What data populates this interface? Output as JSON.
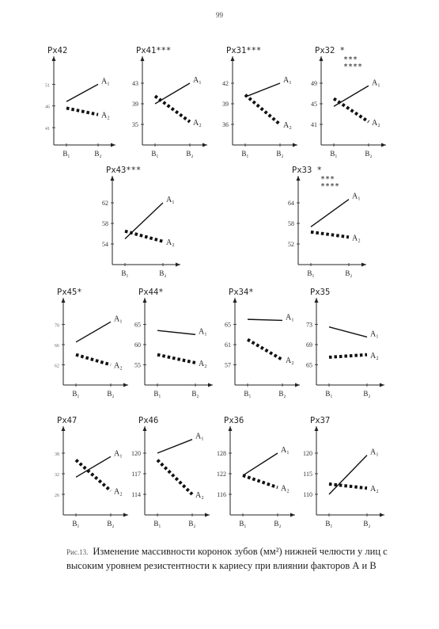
{
  "page_number": "99",
  "caption": {
    "number": "Рис.13.",
    "text": "Изменение массивности коронок зубов (мм²) нижней челюсти у лиц с высоким уровнем резистентности к кариесу при влиянии факторов А и В"
  },
  "chart_data": [
    {
      "type": "line",
      "title": "Px42",
      "stars": [],
      "xticks": [
        "B1",
        "B2"
      ],
      "yticks": [
        41,
        46,
        51
      ],
      "ylim": [
        37,
        56
      ],
      "small_ticks": true,
      "series": [
        {
          "name": "A1",
          "values": [
            47,
            51
          ]
        },
        {
          "name": "A2",
          "values": [
            45.5,
            44
          ]
        }
      ]
    },
    {
      "type": "line",
      "title": "Px41***",
      "stars": [],
      "xticks": [
        "B1",
        "B2"
      ],
      "yticks": [
        35,
        39,
        43
      ],
      "ylim": [
        31,
        47
      ],
      "small_ticks": false,
      "series": [
        {
          "name": "A1",
          "values": [
            39,
            43
          ]
        },
        {
          "name": "A2",
          "values": [
            40.5,
            35.5
          ]
        }
      ]
    },
    {
      "type": "line",
      "title": "Px31***",
      "stars": [],
      "xticks": [
        "B1",
        "B2"
      ],
      "yticks": [
        36,
        39,
        42
      ],
      "ylim": [
        33,
        45
      ],
      "small_ticks": false,
      "series": [
        {
          "name": "A1",
          "values": [
            40,
            42
          ]
        },
        {
          "name": "A2",
          "values": [
            40.3,
            36
          ]
        }
      ]
    },
    {
      "type": "line",
      "title": "Px32 *",
      "stars": [
        "***",
        "****"
      ],
      "xticks": [
        "B1",
        "B2"
      ],
      "yticks": [
        41,
        45,
        49
      ],
      "ylim": [
        37,
        53
      ],
      "small_ticks": false,
      "series": [
        {
          "name": "A1",
          "values": [
            44.5,
            48.5
          ]
        },
        {
          "name": "A2",
          "values": [
            46,
            41.5
          ]
        }
      ]
    },
    {
      "type": "line",
      "title": "Px43***",
      "stars": [],
      "xticks": [
        "B1",
        "B2"
      ],
      "yticks": [
        54,
        58,
        62
      ],
      "ylim": [
        50,
        66
      ],
      "small_ticks": false,
      "series": [
        {
          "name": "A1",
          "values": [
            55,
            62
          ]
        },
        {
          "name": "A2",
          "values": [
            56.5,
            54.5
          ]
        }
      ]
    },
    {
      "type": "line",
      "title": "Px33 *",
      "stars": [
        "***",
        "****"
      ],
      "xticks": [
        "B1",
        "B2"
      ],
      "yticks": [
        52,
        58,
        64
      ],
      "ylim": [
        46,
        70
      ],
      "small_ticks": false,
      "series": [
        {
          "name": "A1",
          "values": [
            57,
            65
          ]
        },
        {
          "name": "A2",
          "values": [
            55.5,
            54
          ]
        }
      ]
    },
    {
      "type": "line",
      "title": "Px45*",
      "stars": [],
      "xticks": [
        "B1",
        "B2"
      ],
      "yticks": [
        62,
        66,
        70
      ],
      "ylim": [
        58,
        74
      ],
      "small_ticks": true,
      "series": [
        {
          "name": "A1",
          "values": [
            66.5,
            70.5
          ]
        },
        {
          "name": "A2",
          "values": [
            64,
            62
          ]
        }
      ]
    },
    {
      "type": "line",
      "title": "Px44*",
      "stars": [],
      "xticks": [
        "B1",
        "B2"
      ],
      "yticks": [
        55,
        60,
        65
      ],
      "ylim": [
        50,
        70
      ],
      "small_ticks": false,
      "series": [
        {
          "name": "A1",
          "values": [
            63.5,
            62.5
          ]
        },
        {
          "name": "A2",
          "values": [
            57.5,
            55.5
          ]
        }
      ]
    },
    {
      "type": "line",
      "title": "Px34*",
      "stars": [],
      "xticks": [
        "B1",
        "B2"
      ],
      "yticks": [
        57,
        61,
        65
      ],
      "ylim": [
        53,
        69
      ],
      "small_ticks": false,
      "series": [
        {
          "name": "A1",
          "values": [
            66,
            65.8
          ]
        },
        {
          "name": "A2",
          "values": [
            62,
            58
          ]
        }
      ]
    },
    {
      "type": "line",
      "title": "Px35",
      "stars": [],
      "xticks": [
        "B1",
        "B2"
      ],
      "yticks": [
        65,
        69,
        73
      ],
      "ylim": [
        61,
        77
      ],
      "small_ticks": false,
      "series": [
        {
          "name": "A1",
          "values": [
            72.5,
            70.5
          ]
        },
        {
          "name": "A2",
          "values": [
            66.5,
            67
          ]
        }
      ]
    },
    {
      "type": "line",
      "title": "Px47",
      "stars": [],
      "xticks": [
        "B1",
        "B2"
      ],
      "yticks": [
        26,
        32,
        38
      ],
      "ylim": [
        20,
        44
      ],
      "small_ticks": true,
      "series": [
        {
          "name": "A1",
          "values": [
            31,
            37
          ]
        },
        {
          "name": "A2",
          "values": [
            36,
            27
          ]
        }
      ]
    },
    {
      "type": "line",
      "title": "Px46",
      "stars": [],
      "xticks": [
        "B1",
        "B2"
      ],
      "yticks": [
        114,
        117,
        120
      ],
      "ylim": [
        111,
        123
      ],
      "small_ticks": false,
      "series": [
        {
          "name": "A1",
          "values": [
            120,
            122
          ]
        },
        {
          "name": "A2",
          "values": [
            119,
            114
          ]
        }
      ]
    },
    {
      "type": "line",
      "title": "Px36",
      "stars": [],
      "xticks": [
        "B1",
        "B2"
      ],
      "yticks": [
        116,
        122,
        128
      ],
      "ylim": [
        110,
        134
      ],
      "small_ticks": false,
      "series": [
        {
          "name": "A1",
          "values": [
            121.5,
            128
          ]
        },
        {
          "name": "A2",
          "values": [
            121.5,
            118
          ]
        }
      ]
    },
    {
      "type": "line",
      "title": "Px37",
      "stars": [],
      "xticks": [
        "B1",
        "B2"
      ],
      "yticks": [
        110,
        115,
        120
      ],
      "ylim": [
        105,
        125
      ],
      "small_ticks": false,
      "series": [
        {
          "name": "A1",
          "values": [
            110,
            119.5
          ]
        },
        {
          "name": "A2",
          "values": [
            112.5,
            111.5
          ]
        }
      ]
    }
  ]
}
